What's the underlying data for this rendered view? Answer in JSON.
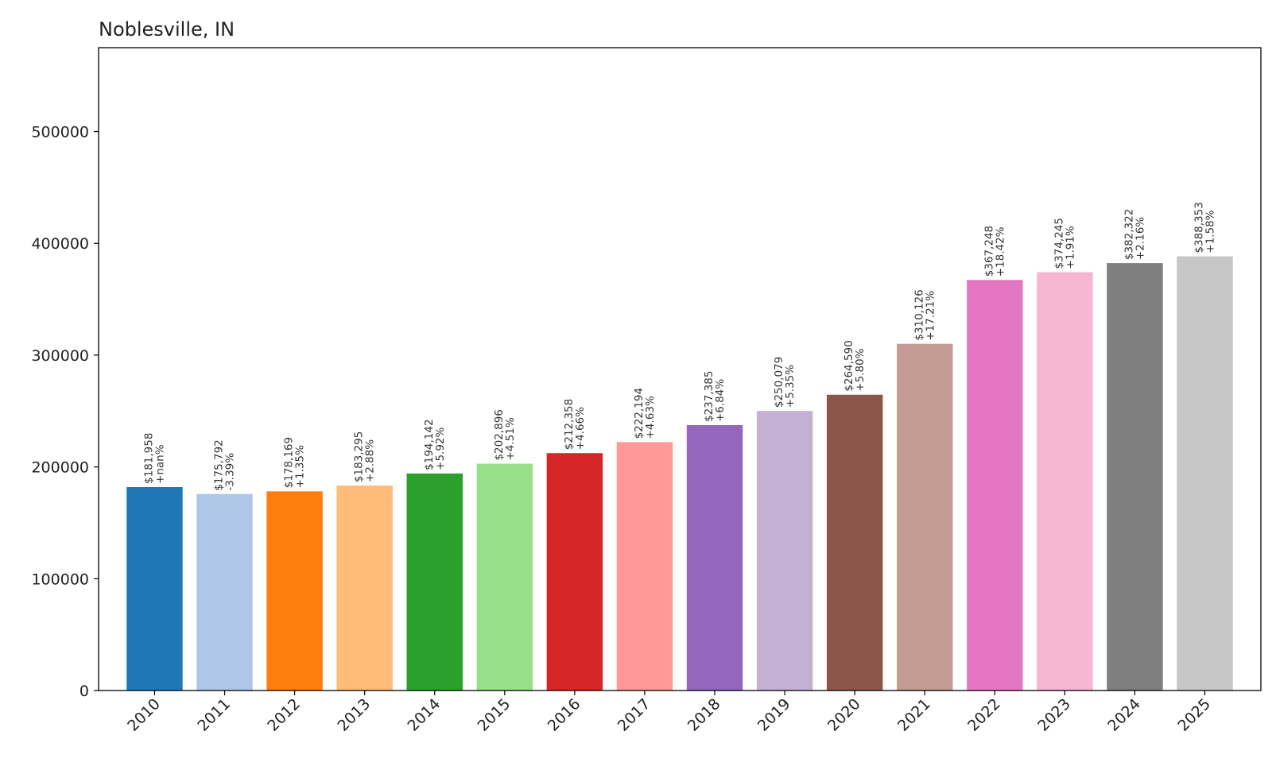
{
  "chart_data": {
    "type": "bar",
    "title": "Noblesville, IN",
    "xlabel": "",
    "ylabel": "",
    "categories": [
      "2010",
      "2011",
      "2012",
      "2013",
      "2014",
      "2015",
      "2016",
      "2017",
      "2018",
      "2019",
      "2020",
      "2021",
      "2022",
      "2023",
      "2024",
      "2025"
    ],
    "values": [
      181958,
      175792,
      178169,
      183295,
      194142,
      202896,
      212358,
      222194,
      237385,
      250079,
      264590,
      310126,
      367248,
      374245,
      382322,
      388353
    ],
    "value_labels": [
      "$181,958",
      "$175,792",
      "$178,169",
      "$183,295",
      "$194,142",
      "$202,896",
      "$212,358",
      "$222,194",
      "$237,385",
      "$250,079",
      "$264,590",
      "$310,126",
      "$367,248",
      "$374,245",
      "$382,322",
      "$388,353"
    ],
    "change_labels": [
      "+nan%",
      "-3.39%",
      "+1.35%",
      "+2.88%",
      "+5.92%",
      "+4.51%",
      "+4.66%",
      "+4.63%",
      "+6.84%",
      "+5.35%",
      "+5.80%",
      "+17.21%",
      "+18.42%",
      "+1.91%",
      "+2.16%",
      "+1.58%"
    ],
    "colors": [
      "#1f77b4",
      "#aec7e8",
      "#ff7f0e",
      "#ffbb78",
      "#2ca02c",
      "#98df8a",
      "#d62728",
      "#ff9896",
      "#9467bd",
      "#c5b0d5",
      "#8c564b",
      "#c49c94",
      "#e377c2",
      "#f7b6d2",
      "#7f7f7f",
      "#c7c7c7"
    ],
    "yticks": [
      0,
      100000,
      200000,
      300000,
      400000,
      500000
    ],
    "ylim": [
      0,
      575000
    ],
    "grid": false,
    "legend": "none"
  }
}
